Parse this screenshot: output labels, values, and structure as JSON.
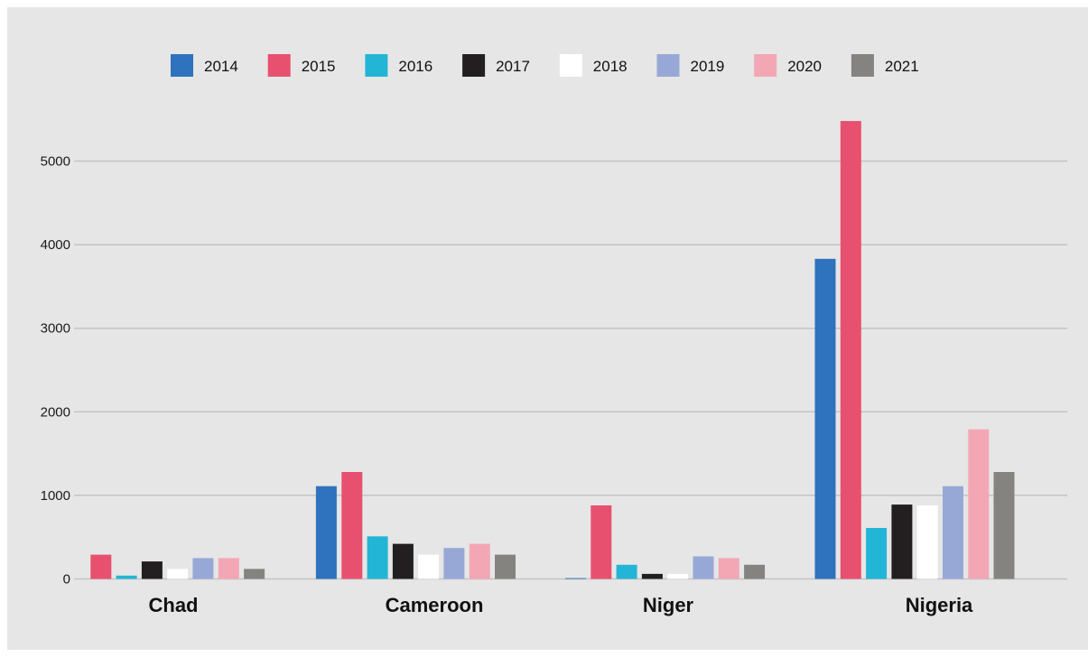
{
  "chart_data": {
    "type": "bar",
    "categories": [
      "Chad",
      "Cameroon",
      "Niger",
      "Nigeria"
    ],
    "series": [
      {
        "name": "2014",
        "color": "#2f72bd",
        "values": [
          0,
          1110,
          10,
          3830
        ]
      },
      {
        "name": "2015",
        "color": "#e8506f",
        "values": [
          290,
          1280,
          880,
          5480
        ]
      },
      {
        "name": "2016",
        "color": "#23b5d5",
        "values": [
          40,
          510,
          170,
          610
        ]
      },
      {
        "name": "2017",
        "color": "#231f20",
        "values": [
          210,
          420,
          60,
          890
        ]
      },
      {
        "name": "2018",
        "color": "#ffffff",
        "values": [
          120,
          290,
          60,
          880
        ]
      },
      {
        "name": "2019",
        "color": "#98a8d6",
        "values": [
          250,
          370,
          270,
          1110
        ]
      },
      {
        "name": "2020",
        "color": "#f3a7b5",
        "values": [
          250,
          420,
          250,
          1790
        ]
      },
      {
        "name": "2021",
        "color": "#848380",
        "values": [
          120,
          290,
          170,
          1280
        ]
      }
    ],
    "yticks": [
      0,
      1000,
      2000,
      3000,
      4000,
      5000
    ],
    "ylim": [
      0,
      5800
    ],
    "grid": true,
    "legend": "top",
    "background": "#e6e6e6"
  }
}
